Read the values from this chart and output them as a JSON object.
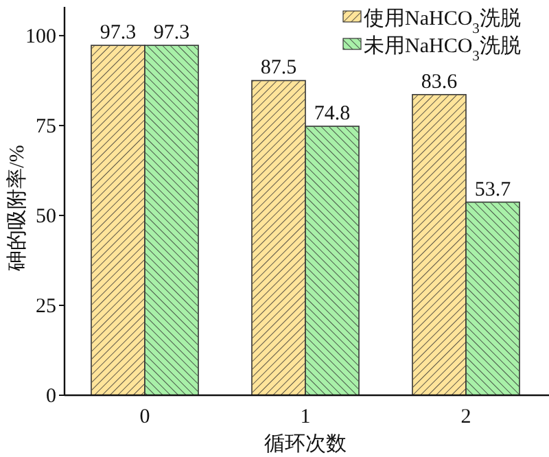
{
  "chart_data": {
    "type": "bar",
    "xlabel": "循环次数",
    "ylabel": "砷的吸附率/%",
    "categories": [
      "0",
      "1",
      "2"
    ],
    "series": [
      {
        "name": "使用NaHCO$_{3}$洗脱",
        "color": "#ffe49a",
        "values": [
          97.3,
          87.5,
          83.6
        ]
      },
      {
        "name": "未用NaHCO$_{3}$洗脱",
        "color": "#a8f0a8",
        "values": [
          97.3,
          74.8,
          53.7
        ]
      }
    ],
    "ylim": [
      0,
      108
    ],
    "yticks": [
      0,
      25,
      50,
      75,
      100
    ],
    "data_labels": true,
    "legend": "top right"
  }
}
